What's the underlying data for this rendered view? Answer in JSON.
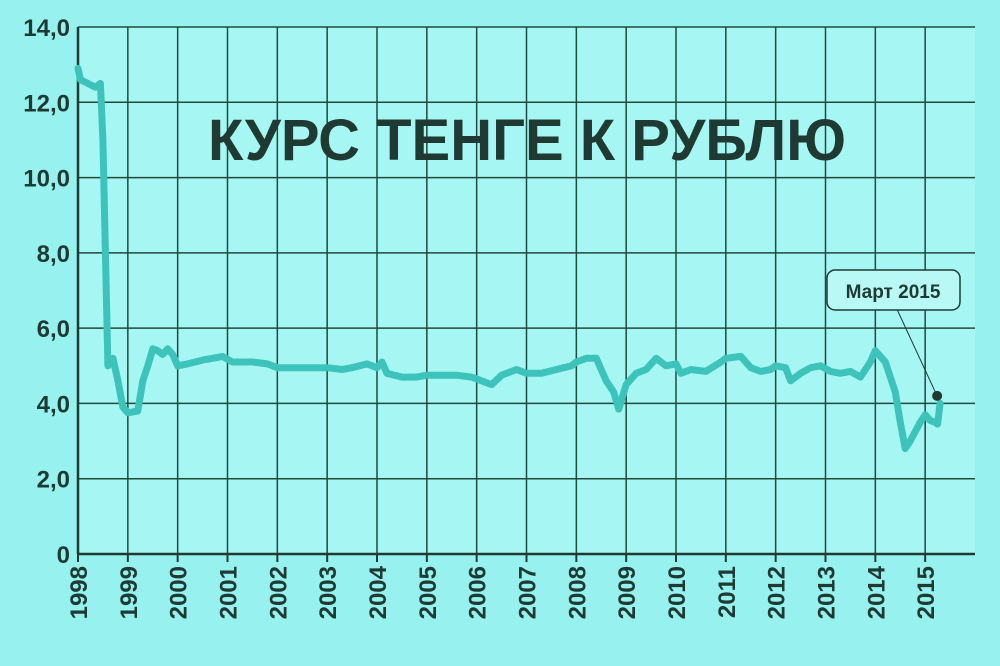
{
  "chart_data": {
    "type": "line",
    "title": "КУРС ТЕНГЕ К РУБЛЮ",
    "color": "#3ec3bb",
    "grid": true,
    "xlim": [
      1998,
      2016
    ],
    "xticks": [
      1998,
      1999,
      2000,
      2001,
      2002,
      2003,
      2004,
      2005,
      2006,
      2007,
      2008,
      2009,
      2010,
      2011,
      2012,
      2013,
      2014,
      2015
    ],
    "ylim": [
      0,
      14
    ],
    "yticks": [
      0,
      {
        "value": 2,
        "label": "2,0"
      },
      {
        "value": 4,
        "label": "4,0"
      },
      {
        "value": 6,
        "label": "6,0"
      },
      {
        "value": 8,
        "label": "8,0"
      },
      {
        "value": 10,
        "label": "10,0"
      },
      {
        "value": 12,
        "label": "12,0"
      },
      {
        "value": 14,
        "label": "14,0"
      }
    ],
    "x": [
      1998.0,
      1998.05,
      1998.2,
      1998.35,
      1998.45,
      1998.5,
      1998.6,
      1998.7,
      1998.8,
      1998.9,
      1999.0,
      1999.2,
      1999.3,
      1999.4,
      1999.5,
      1999.6,
      1999.7,
      1999.8,
      1999.9,
      2000.0,
      2000.2,
      2000.5,
      2000.7,
      2000.9,
      2001.1,
      2001.5,
      2001.8,
      2002.0,
      2002.5,
      2003.0,
      2003.3,
      2003.5,
      2003.8,
      2004.0,
      2004.1,
      2004.2,
      2004.5,
      2004.8,
      2005.0,
      2005.3,
      2005.6,
      2005.9,
      2006.1,
      2006.3,
      2006.5,
      2006.8,
      2007.0,
      2007.3,
      2007.6,
      2007.9,
      2008.0,
      2008.2,
      2008.4,
      2008.6,
      2008.75,
      2008.85,
      2009.0,
      2009.2,
      2009.4,
      2009.6,
      2009.8,
      2010.0,
      2010.1,
      2010.3,
      2010.6,
      2010.9,
      2011.0,
      2011.3,
      2011.5,
      2011.7,
      2011.9,
      2012.0,
      2012.2,
      2012.3,
      2012.5,
      2012.7,
      2012.9,
      2013.1,
      2013.3,
      2013.5,
      2013.7,
      2013.9,
      2014.0,
      2014.2,
      2014.4,
      2014.5,
      2014.6,
      2014.7,
      2014.9,
      2015.0,
      2015.1,
      2015.2,
      2015.25,
      2015.3
    ],
    "values": [
      12.9,
      12.6,
      12.5,
      12.4,
      12.5,
      11.0,
      5.0,
      5.2,
      4.6,
      3.9,
      3.75,
      3.8,
      4.6,
      5.0,
      5.45,
      5.4,
      5.3,
      5.45,
      5.3,
      5.0,
      5.05,
      5.15,
      5.2,
      5.25,
      5.1,
      5.1,
      5.05,
      4.95,
      4.95,
      4.95,
      4.9,
      4.95,
      5.05,
      4.95,
      5.1,
      4.8,
      4.7,
      4.7,
      4.75,
      4.75,
      4.75,
      4.7,
      4.6,
      4.5,
      4.75,
      4.9,
      4.8,
      4.8,
      4.9,
      5.0,
      5.1,
      5.2,
      5.2,
      4.6,
      4.3,
      3.85,
      4.5,
      4.8,
      4.9,
      5.2,
      5.0,
      5.05,
      4.8,
      4.9,
      4.85,
      5.1,
      5.2,
      5.25,
      4.95,
      4.85,
      4.9,
      5.0,
      4.95,
      4.6,
      4.8,
      4.95,
      5.0,
      4.85,
      4.8,
      4.85,
      4.7,
      5.1,
      5.4,
      5.1,
      4.3,
      3.5,
      2.8,
      3.0,
      3.5,
      3.7,
      3.55,
      3.5,
      3.45,
      4.0
    ],
    "annotation": {
      "text": "Март 2015",
      "x": 2015.24,
      "y": 4.2
    }
  }
}
